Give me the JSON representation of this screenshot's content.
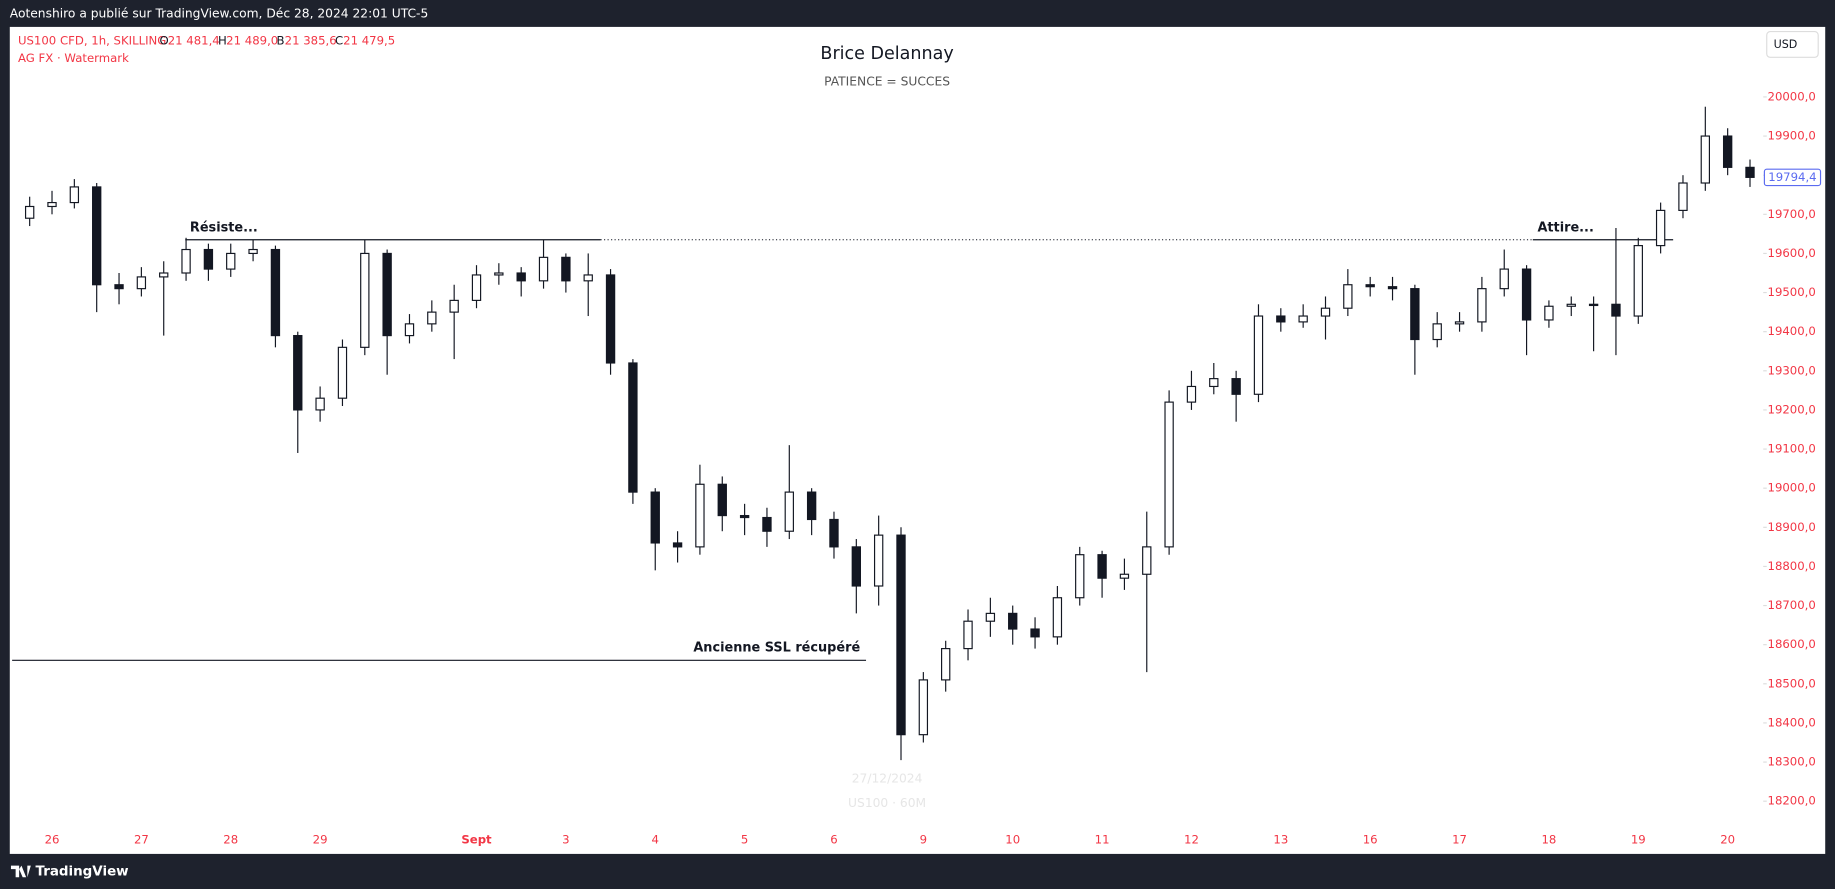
{
  "header": "Aotenshiro a publié sur TradingView.com, Déc 28, 2024 22:01 UTC-5",
  "footer": "TradingView",
  "chart_data": {
    "type": "candlestick",
    "title": "Brice Delannay",
    "subtitle": "PATIENCE = SUCCES",
    "symbol": "US100 CFD, 1h, SKILLING",
    "ohlc": [
      {
        "key": "O",
        "value": "21 481,4"
      },
      {
        "key": "H",
        "value": "21 489,0"
      },
      {
        "key": "B",
        "value": "21 385,6"
      },
      {
        "key": "C",
        "value": "21 479,5"
      }
    ],
    "indicator": "AG FX · Watermark",
    "watermark": [
      "27/12/2024",
      "US100 · 60M"
    ],
    "currency": "USD",
    "up_color": "#ffffff",
    "down_color": "#131722",
    "border_color": "#131722",
    "axis_label_color": "#f23645",
    "categories": [
      null,
      "26",
      null,
      null,
      null,
      "27",
      null,
      null,
      null,
      "28",
      null,
      null,
      null,
      "29",
      null,
      null,
      null,
      null,
      null,
      null,
      "Sept",
      null,
      null,
      null,
      "3",
      null,
      null,
      null,
      "4",
      null,
      null,
      null,
      "5",
      null,
      null,
      null,
      "6",
      null,
      null,
      null,
      "9",
      null,
      null,
      null,
      "10",
      null,
      null,
      null,
      "11",
      null,
      null,
      null,
      "12",
      null,
      null,
      null,
      "13",
      null,
      null,
      null,
      "16",
      null,
      null,
      null,
      "17",
      null,
      null,
      null,
      "18",
      null,
      null,
      null,
      "19",
      null,
      null,
      null,
      "20",
      null
    ],
    "open": [
      19690,
      19720,
      19730,
      19770,
      19520,
      19510,
      19540,
      19550,
      19610,
      19560,
      19600,
      19610,
      19390,
      19200,
      19230,
      19360,
      19600,
      19390,
      19420,
      19450,
      19480,
      19545,
      19550,
      19530,
      19590,
      19530,
      19545,
      19320,
      18990,
      18860,
      18850,
      19010,
      18930,
      18925,
      18890,
      18990,
      18920,
      18850,
      18750,
      18880,
      18370,
      18510,
      18590,
      18660,
      18680,
      18640,
      18620,
      18720,
      18830,
      18770,
      18780,
      18850,
      19220,
      19260,
      19280,
      19240,
      19440,
      19425,
      19440,
      19460,
      19520,
      19515,
      19510,
      19380,
      19420,
      19425,
      19510,
      19560,
      19430,
      19465,
      19470,
      19470,
      19440,
      19620,
      19710,
      19780,
      19900,
      19820
    ],
    "high": [
      19745,
      19760,
      19790,
      19780,
      19550,
      19565,
      19580,
      19640,
      19625,
      19625,
      19635,
      19620,
      19400,
      19260,
      19380,
      19635,
      19610,
      19445,
      19480,
      19520,
      19570,
      19575,
      19565,
      19635,
      19600,
      19600,
      19560,
      19330,
      19000,
      18890,
      19060,
      19030,
      18960,
      18950,
      19110,
      19000,
      18940,
      18870,
      18930,
      18900,
      18530,
      18610,
      18690,
      18720,
      18700,
      18670,
      18750,
      18850,
      18840,
      18820,
      18940,
      19250,
      19300,
      19320,
      19300,
      19470,
      19460,
      19470,
      19490,
      19560,
      19540,
      19540,
      19520,
      19450,
      19450,
      19540,
      19610,
      19570,
      19480,
      19490,
      19490,
      19665,
      19640,
      19730,
      19800,
      19975,
      19920,
      19840
    ],
    "low": [
      19670,
      19700,
      19715,
      19450,
      19470,
      19490,
      19390,
      19530,
      19530,
      19540,
      19580,
      19360,
      19090,
      19170,
      19210,
      19340,
      19290,
      19370,
      19400,
      19330,
      19460,
      19520,
      19490,
      19510,
      19500,
      19440,
      19290,
      18960,
      18790,
      18810,
      18830,
      18890,
      18880,
      18850,
      18870,
      18880,
      18820,
      18680,
      18700,
      18305,
      18350,
      18480,
      18560,
      18620,
      18600,
      18590,
      18600,
      18700,
      18720,
      18740,
      18530,
      18830,
      19200,
      19240,
      19170,
      19220,
      19400,
      19410,
      19380,
      19440,
      19490,
      19480,
      19290,
      19360,
      19400,
      19400,
      19490,
      19340,
      19410,
      19440,
      19350,
      19340,
      19420,
      19600,
      19690,
      19760,
      19800,
      19770
    ],
    "close": [
      19720,
      19730,
      19770,
      19520,
      19510,
      19540,
      19550,
      19610,
      19560,
      19600,
      19610,
      19390,
      19200,
      19230,
      19360,
      19600,
      19390,
      19420,
      19450,
      19480,
      19545,
      19550,
      19530,
      19590,
      19530,
      19545,
      19320,
      18990,
      18860,
      18850,
      19010,
      18930,
      18925,
      18890,
      18990,
      18920,
      18850,
      18750,
      18880,
      18370,
      18510,
      18590,
      18660,
      18680,
      18640,
      18620,
      18720,
      18830,
      18770,
      18780,
      18850,
      19220,
      19260,
      19280,
      19240,
      19440,
      19425,
      19440,
      19460,
      19520,
      19515,
      19510,
      19380,
      19420,
      19425,
      19510,
      19560,
      19430,
      19465,
      19470,
      19470,
      19440,
      19620,
      19710,
      19780,
      19900,
      19820,
      19794.4
    ],
    "ylim": [
      18137,
      20176
    ],
    "yticks": [
      {
        "value": 18200,
        "label": "18200,0"
      },
      {
        "value": 18300,
        "label": "18300,0"
      },
      {
        "value": 18400,
        "label": "18400,0"
      },
      {
        "value": 18500,
        "label": "18500,0"
      },
      {
        "value": 18600,
        "label": "18600,0"
      },
      {
        "value": 18700,
        "label": "18700,0"
      },
      {
        "value": 18800,
        "label": "18800,0"
      },
      {
        "value": 18900,
        "label": "18900,0"
      },
      {
        "value": 19000,
        "label": "19000,0"
      },
      {
        "value": 19100,
        "label": "19100,0"
      },
      {
        "value": 19200,
        "label": "19200,0"
      },
      {
        "value": 19300,
        "label": "19300,0"
      },
      {
        "value": 19400,
        "label": "19400,0"
      },
      {
        "value": 19500,
        "label": "19500,0"
      },
      {
        "value": 19600,
        "label": "19600,0"
      },
      {
        "value": 19700,
        "label": "19700,0"
      },
      {
        "value": 19800,
        "label": "19800,0"
      },
      {
        "value": 19900,
        "label": "19900,0"
      },
      {
        "value": 20000,
        "label": "20000,0"
      }
    ],
    "last_price": {
      "value": 19794.4,
      "label": "19794,4"
    },
    "annotations": [
      {
        "text": "Résiste...",
        "value": 19635
      },
      {
        "text": "Attire...",
        "value": 19635
      },
      {
        "text": "Ancienne SSL récupéré",
        "value": 18560
      }
    ]
  }
}
